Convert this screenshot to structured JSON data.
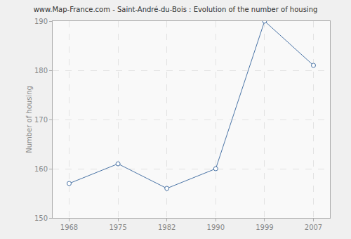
{
  "chart_data": {
    "type": "line",
    "title": "www.Map-France.com - Saint-André-du-Bois : Evolution of the number of housing",
    "y_label": "Number of housing",
    "categories": [
      "1968",
      "1975",
      "1982",
      "1990",
      "1999",
      "2007"
    ],
    "values": [
      157,
      161,
      156,
      160,
      190,
      181
    ],
    "color": "#4a74a6",
    "marker": "circle",
    "ylim": [
      150,
      190
    ],
    "yticks": [
      150,
      160,
      170,
      180,
      190
    ],
    "grid": true
  }
}
